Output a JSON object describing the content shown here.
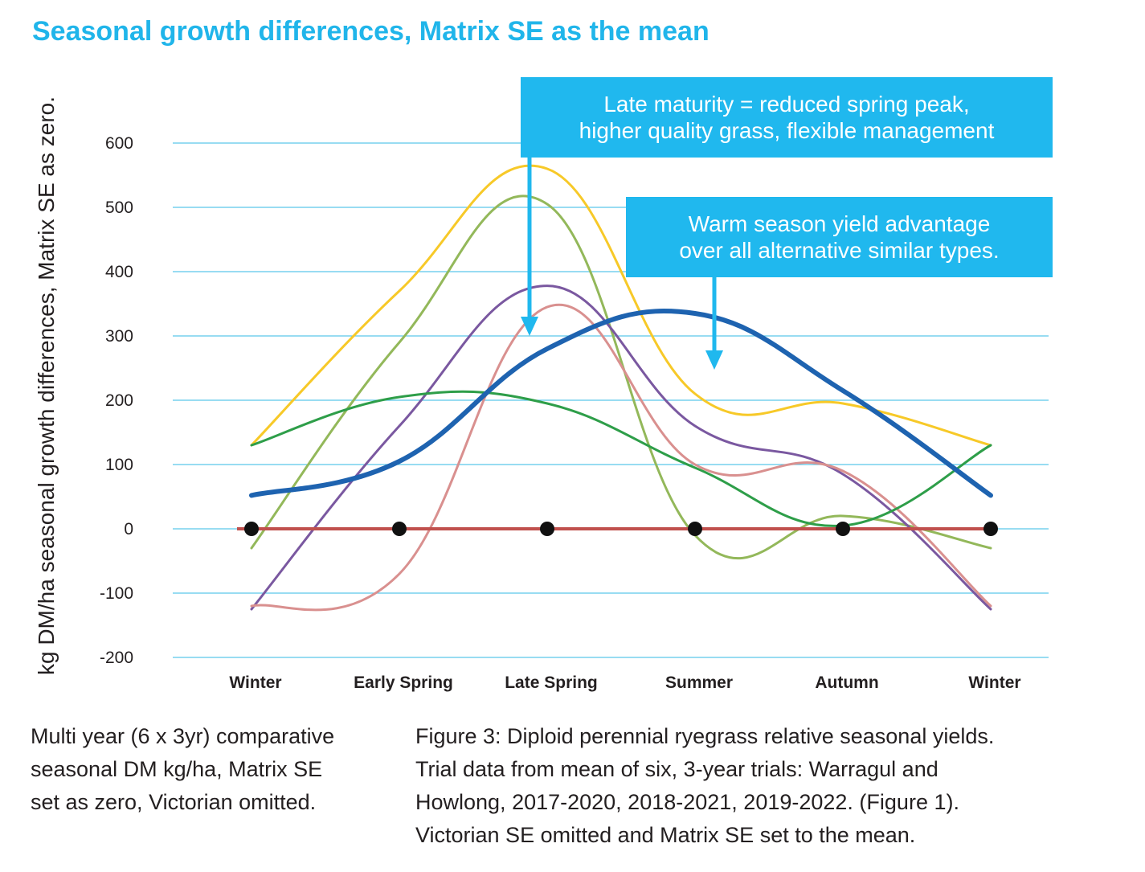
{
  "title": "Seasonal growth differences, Matrix SE as the mean",
  "chart_data": {
    "type": "line",
    "title": "Seasonal growth differences, Matrix SE as the mean",
    "xlabel": "",
    "ylabel": "kg DM/ha seasonal growth differences, Matrix SE as zero.",
    "categories": [
      "Winter",
      "Early Spring",
      "Late Spring",
      "Summer",
      "Autumn",
      "Winter"
    ],
    "ylim": [
      -200,
      600
    ],
    "yticks": [
      600,
      500,
      400,
      300,
      200,
      100,
      0,
      -100,
      -200
    ],
    "grid": true,
    "series": [
      {
        "color": "#1e63b0",
        "values": [
          52,
          105,
          280,
          335,
          215,
          52
        ],
        "width": 6
      },
      {
        "color": "#f7c928",
        "values": [
          130,
          370,
          560,
          210,
          195,
          130
        ],
        "width": 3
      },
      {
        "color": "#93b85a",
        "values": [
          -30,
          290,
          505,
          -10,
          20,
          -30
        ],
        "width": 3
      },
      {
        "color": "#7a58a0",
        "values": [
          -125,
          160,
          378,
          160,
          85,
          -125
        ],
        "width": 3
      },
      {
        "color": "#d9908f",
        "values": [
          -120,
          -70,
          345,
          100,
          90,
          -120
        ],
        "width": 3
      },
      {
        "color": "#2e9e49",
        "values": [
          130,
          205,
          195,
          95,
          5,
          130
        ],
        "width": 3
      },
      {
        "color": "#c0504d",
        "values": [
          0,
          0,
          0,
          0,
          0,
          0
        ],
        "width": 4,
        "markers": true
      }
    ],
    "annotations": [
      {
        "text": "Late maturity = reduced spring peak,\nhigher quality grass, flexible management"
      },
      {
        "text": "Warm season yield advantage\nover all alternative similar types."
      }
    ]
  },
  "captions": {
    "left": "Multi year (6 x 3yr) comparative\nseasonal DM kg/ha, Matrix SE\nset as zero, Victorian omitted.",
    "right": "Figure 3: Diploid perennial ryegrass relative seasonal yields.\nTrial data from mean of six, 3-year trials: Warragul and\nHowlong, 2017-2020, 2018-2021, 2019-2022. (Figure 1).\nVictorian SE omitted and Matrix SE set to the mean."
  },
  "colors": {
    "title": "#20b5ea",
    "callout": "#20b8ee",
    "grid": "#5bc8ea",
    "marker": "#111111"
  }
}
